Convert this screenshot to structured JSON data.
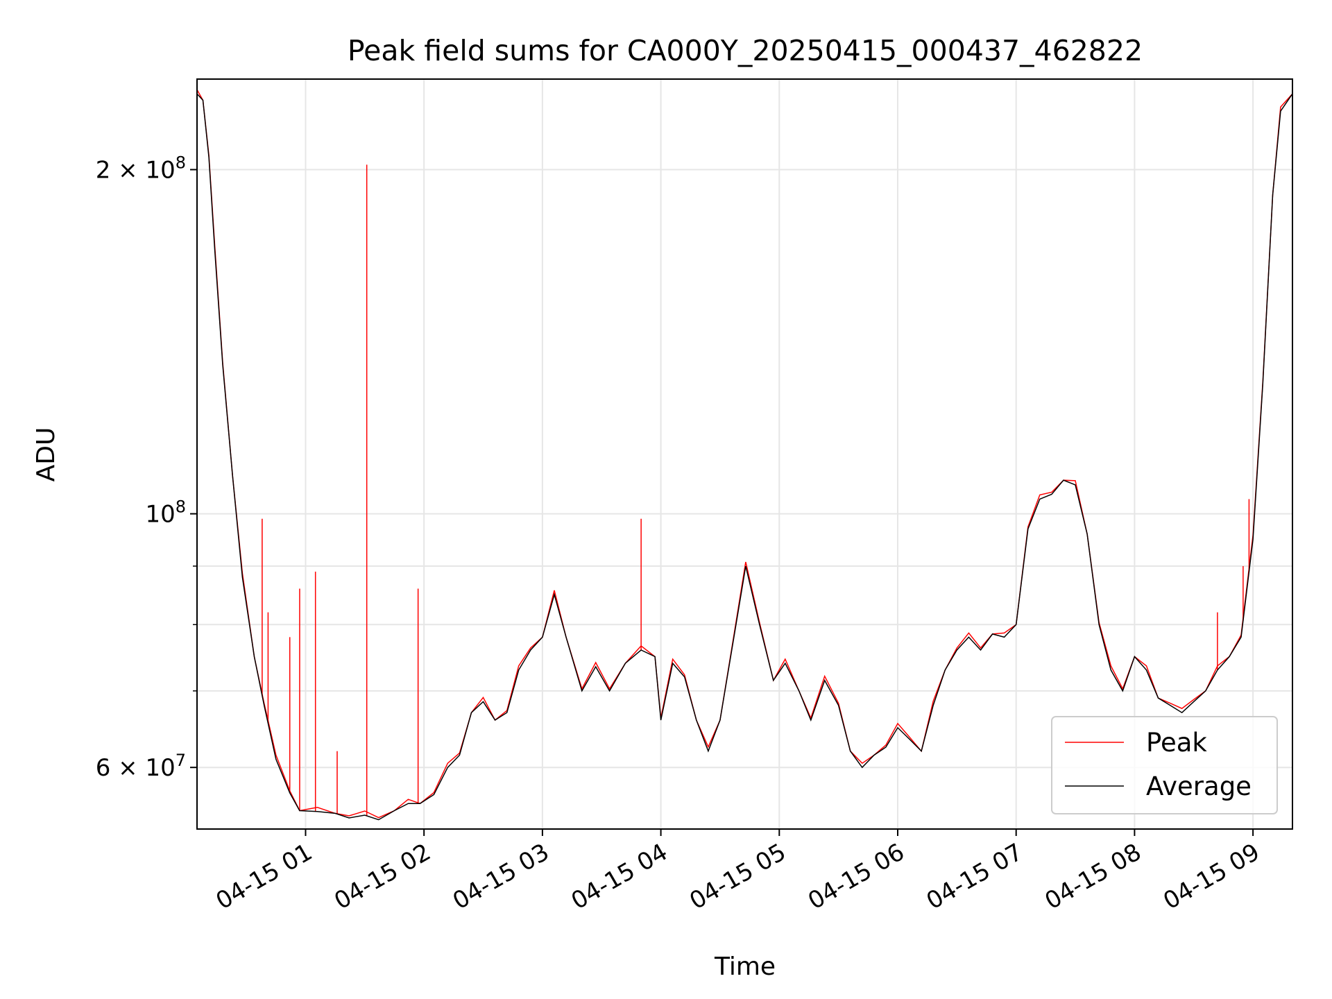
{
  "chart_data": {
    "type": "line",
    "title": "Peak field sums for CA000Y_20250415_000437_462822",
    "xlabel": "Time",
    "ylabel": "ADU",
    "y_scale": "log",
    "ylim": [
      53000000,
      240000000
    ],
    "xlim": [
      "2025-04-15 00:05",
      "2025-04-15 09:20"
    ],
    "grid": true,
    "legend_position": "lower-right",
    "x_ticks": [
      {
        "value": "2025-04-15 01:00",
        "label": "04-15 01"
      },
      {
        "value": "2025-04-15 02:00",
        "label": "04-15 02"
      },
      {
        "value": "2025-04-15 03:00",
        "label": "04-15 03"
      },
      {
        "value": "2025-04-15 04:00",
        "label": "04-15 04"
      },
      {
        "value": "2025-04-15 05:00",
        "label": "04-15 05"
      },
      {
        "value": "2025-04-15 06:00",
        "label": "04-15 06"
      },
      {
        "value": "2025-04-15 07:00",
        "label": "04-15 07"
      },
      {
        "value": "2025-04-15 08:00",
        "label": "04-15 08"
      },
      {
        "value": "2025-04-15 09:00",
        "label": "04-15 09"
      }
    ],
    "y_major_ticks": [
      {
        "value": 60000000,
        "mantissa": "6",
        "exponent": "7"
      },
      {
        "value": 100000000,
        "mantissa": "",
        "exponent": "8"
      },
      {
        "value": 200000000,
        "mantissa": "2",
        "exponent": "8"
      }
    ],
    "y_minor_ticks": [
      70000000,
      80000000,
      90000000
    ],
    "series": [
      {
        "name": "Average",
        "color": "#000000",
        "points": [
          [
            "2025-04-15 00:05",
            233000000
          ],
          [
            "2025-04-15 00:08",
            230000000
          ],
          [
            "2025-04-15 00:11",
            205000000
          ],
          [
            "2025-04-15 00:14",
            170000000
          ],
          [
            "2025-04-15 00:18",
            135000000
          ],
          [
            "2025-04-15 00:23",
            108000000
          ],
          [
            "2025-04-15 00:28",
            88000000
          ],
          [
            "2025-04-15 00:34",
            75000000
          ],
          [
            "2025-04-15 00:39",
            68000000
          ],
          [
            "2025-04-15 00:45",
            61000000
          ],
          [
            "2025-04-15 00:52",
            57000000
          ],
          [
            "2025-04-15 00:57",
            55000000
          ],
          [
            "2025-04-15 01:06",
            54900000
          ],
          [
            "2025-04-15 01:15",
            54700000
          ],
          [
            "2025-04-15 01:22",
            54200000
          ],
          [
            "2025-04-15 01:30",
            54500000
          ],
          [
            "2025-04-15 01:37",
            54000000
          ],
          [
            "2025-04-15 01:45",
            55000000
          ],
          [
            "2025-04-15 01:52",
            55800000
          ],
          [
            "2025-04-15 01:58",
            55800000
          ],
          [
            "2025-04-15 02:05",
            56800000
          ],
          [
            "2025-04-15 02:12",
            60000000
          ],
          [
            "2025-04-15 02:18",
            61500000
          ],
          [
            "2025-04-15 02:24",
            67000000
          ],
          [
            "2025-04-15 02:30",
            68500000
          ],
          [
            "2025-04-15 02:36",
            66000000
          ],
          [
            "2025-04-15 02:42",
            67000000
          ],
          [
            "2025-04-15 02:48",
            73000000
          ],
          [
            "2025-04-15 02:54",
            76000000
          ],
          [
            "2025-04-15 03:00",
            78000000
          ],
          [
            "2025-04-15 03:06",
            85000000
          ],
          [
            "2025-04-15 03:12",
            78000000
          ],
          [
            "2025-04-15 03:20",
            70000000
          ],
          [
            "2025-04-15 03:27",
            73500000
          ],
          [
            "2025-04-15 03:34",
            70000000
          ],
          [
            "2025-04-15 03:42",
            74000000
          ],
          [
            "2025-04-15 03:50",
            76000000
          ],
          [
            "2025-04-15 03:57",
            75000000
          ],
          [
            "2025-04-15 04:00",
            66000000
          ],
          [
            "2025-04-15 04:06",
            74000000
          ],
          [
            "2025-04-15 04:12",
            72000000
          ],
          [
            "2025-04-15 04:18",
            66000000
          ],
          [
            "2025-04-15 04:24",
            62000000
          ],
          [
            "2025-04-15 04:30",
            66000000
          ],
          [
            "2025-04-15 04:37",
            78000000
          ],
          [
            "2025-04-15 04:43",
            90000000
          ],
          [
            "2025-04-15 04:50",
            80000000
          ],
          [
            "2025-04-15 04:57",
            71500000
          ],
          [
            "2025-04-15 05:03",
            74000000
          ],
          [
            "2025-04-15 05:10",
            70000000
          ],
          [
            "2025-04-15 05:16",
            66000000
          ],
          [
            "2025-04-15 05:23",
            71500000
          ],
          [
            "2025-04-15 05:30",
            68000000
          ],
          [
            "2025-04-15 05:36",
            62000000
          ],
          [
            "2025-04-15 05:42",
            60000000
          ],
          [
            "2025-04-15 05:48",
            61500000
          ],
          [
            "2025-04-15 05:54",
            62500000
          ],
          [
            "2025-04-15 06:00",
            65000000
          ],
          [
            "2025-04-15 06:06",
            63500000
          ],
          [
            "2025-04-15 06:12",
            62000000
          ],
          [
            "2025-04-15 06:18",
            68000000
          ],
          [
            "2025-04-15 06:24",
            73000000
          ],
          [
            "2025-04-15 06:30",
            76000000
          ],
          [
            "2025-04-15 06:36",
            78000000
          ],
          [
            "2025-04-15 06:42",
            76000000
          ],
          [
            "2025-04-15 06:48",
            78500000
          ],
          [
            "2025-04-15 06:54",
            78000000
          ],
          [
            "2025-04-15 07:00",
            80000000
          ],
          [
            "2025-04-15 07:06",
            97000000
          ],
          [
            "2025-04-15 07:12",
            103000000
          ],
          [
            "2025-04-15 07:18",
            104000000
          ],
          [
            "2025-04-15 07:24",
            107000000
          ],
          [
            "2025-04-15 07:30",
            106000000
          ],
          [
            "2025-04-15 07:36",
            96000000
          ],
          [
            "2025-04-15 07:42",
            80000000
          ],
          [
            "2025-04-15 07:48",
            73000000
          ],
          [
            "2025-04-15 07:54",
            70000000
          ],
          [
            "2025-04-15 08:00",
            75000000
          ],
          [
            "2025-04-15 08:06",
            73000000
          ],
          [
            "2025-04-15 08:12",
            69000000
          ],
          [
            "2025-04-15 08:18",
            68000000
          ],
          [
            "2025-04-15 08:24",
            67000000
          ],
          [
            "2025-04-15 08:30",
            68500000
          ],
          [
            "2025-04-15 08:36",
            70000000
          ],
          [
            "2025-04-15 08:42",
            73000000
          ],
          [
            "2025-04-15 08:48",
            75000000
          ],
          [
            "2025-04-15 08:54",
            78000000
          ],
          [
            "2025-04-15 09:00",
            95000000
          ],
          [
            "2025-04-15 09:05",
            130000000
          ],
          [
            "2025-04-15 09:10",
            190000000
          ],
          [
            "2025-04-15 09:14",
            225000000
          ],
          [
            "2025-04-15 09:20",
            233000000
          ]
        ]
      },
      {
        "name": "Peak",
        "color": "#ff0000",
        "spikes": [
          [
            "2025-04-15 00:38",
            99000000
          ],
          [
            "2025-04-15 00:41",
            82000000
          ],
          [
            "2025-04-15 00:52",
            78000000
          ],
          [
            "2025-04-15 00:57",
            86000000
          ],
          [
            "2025-04-15 01:05",
            89000000
          ],
          [
            "2025-04-15 01:16",
            62000000
          ],
          [
            "2025-04-15 01:31",
            202000000
          ],
          [
            "2025-04-15 01:57",
            86000000
          ],
          [
            "2025-04-15 03:50",
            99000000
          ],
          [
            "2025-04-15 08:42",
            82000000
          ],
          [
            "2025-04-15 08:58",
            103000000
          ],
          [
            "2025-04-15 08:55",
            90000000
          ]
        ]
      }
    ]
  }
}
